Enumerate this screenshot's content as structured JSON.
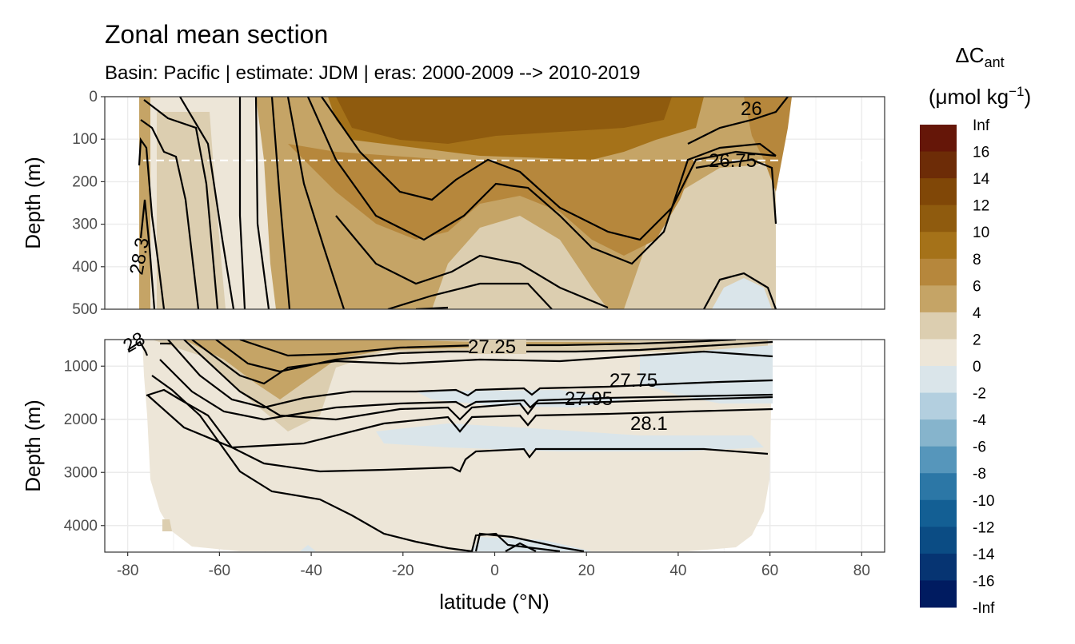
{
  "chart_data": {
    "type": "heatmap",
    "title": "Zonal mean section",
    "subtitle": "Basin: Pacific | estimate: JDM  | eras: 2000-2009 --> 2010-2019",
    "xlabel": "latitude (°N)",
    "ylabel": "Depth (m)",
    "xlim": [
      -85,
      85
    ],
    "x_ticks": [
      "-80",
      "-60",
      "-40",
      "-20",
      "0",
      "20",
      "40",
      "60",
      "80"
    ],
    "panels": [
      {
        "name": "upper",
        "ylim": [
          500,
          0
        ],
        "y_ticks": [
          "0",
          "100",
          "200",
          "300",
          "400",
          "500"
        ],
        "reference_line_depth": 150,
        "contour_labels": [
          "26",
          "26.75",
          "28.3"
        ]
      },
      {
        "name": "lower",
        "ylim": [
          4500,
          500
        ],
        "y_ticks": [
          "1000",
          "2000",
          "3000",
          "4000"
        ],
        "contour_labels": [
          "27.25",
          "27.75",
          "27.95",
          "28.1",
          "28"
        ]
      }
    ],
    "legend": {
      "title_main": "ΔC",
      "title_sub": "ant",
      "unit_open": "(μmol kg",
      "unit_sup": "−1",
      "unit_close": ")",
      "placement": "right",
      "labels": [
        "Inf",
        "16",
        "14",
        "12",
        "10",
        "8",
        "6",
        "4",
        "2",
        "0",
        "-2",
        "-4",
        "-6",
        "-8",
        "-10",
        "-12",
        "-14",
        "-16",
        "-Inf"
      ],
      "colors": [
        "#651608",
        "#6d2c07",
        "#804707",
        "#8f5b0e",
        "#a57219",
        "#b6873c",
        "#c5a466",
        "#dcceb0",
        "#ede6d8",
        "#dae5ea",
        "#b3cfdf",
        "#86b4cc",
        "#5696bb",
        "#2c77a6",
        "#135f94",
        "#0b4c84",
        "#063472",
        "#001b60"
      ]
    }
  }
}
